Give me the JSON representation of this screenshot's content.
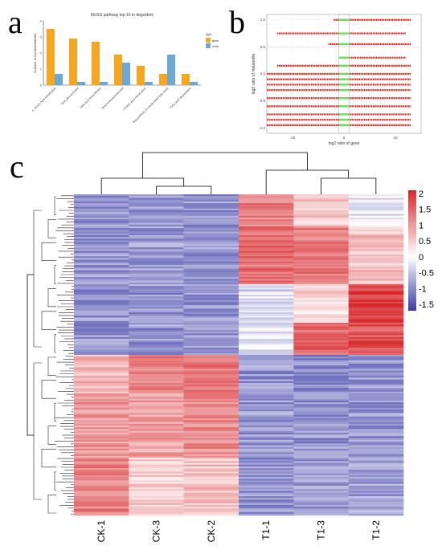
{
  "panel_labels": {
    "a": "a",
    "b": "b",
    "c": "c"
  },
  "colors": {
    "gene": "#f5a623",
    "meta": "#6ea7cf",
    "scatter": "#e8231c",
    "highlight": "#5be55b",
    "heat_low": "#3a3ba6",
    "heat_mid": "#ffffff",
    "heat_high": "#d7272b"
  },
  "chart_data": [
    {
      "type": "bar",
      "panel": "a",
      "title": "KEGG pathway top 10 in degs/dem",
      "ylabel": "Number of Gene/Metabolite",
      "xlabel": "",
      "categories": [
        "Cys, Sulphur, Amino Acid Metabolism",
        "beta glucosinolate",
        "beta acid biosynthesis",
        "Beta hydroxybutanoate",
        "Linoleic acid metabolism",
        "Biosynthesis of unsaturated fatty acids",
        "Fatty acid degradation"
      ],
      "series": [
        {
          "name": "gene",
          "values": [
            3.5,
            2.9,
            2.7,
            1.9,
            1.2,
            0.7,
            0.7
          ]
        },
        {
          "name": "meta",
          "values": [
            0.7,
            0.2,
            0.2,
            1.4,
            0.2,
            1.9,
            0.2
          ]
        }
      ],
      "ylim": [
        0,
        4
      ],
      "legend": {
        "title": "type",
        "position": "right"
      }
    },
    {
      "type": "scatter",
      "panel": "b",
      "title": "",
      "xlabel": "log2 ratio of gene",
      "ylabel": "log2 ratio of metabolite",
      "xlim": [
        -15,
        15
      ],
      "ylim": [
        -1.1,
        1.1
      ],
      "x_ticks": [
        "-10",
        "0",
        "10"
      ],
      "y_ticks": [
        "1.0",
        "0.5",
        "0.0",
        "-0.5",
        "-1.0"
      ],
      "rows": [
        {
          "y": 1.0,
          "x_from": -2,
          "x_to": 13
        },
        {
          "y": 0.75,
          "x_from": -13,
          "x_to": 12
        },
        {
          "y": 0.55,
          "x_from": -3,
          "x_to": 13
        },
        {
          "y": 0.3,
          "x_from": -1,
          "x_to": 12
        },
        {
          "y": 0.15,
          "x_from": -13,
          "x_to": 13
        },
        {
          "y": 0.0,
          "x_from": -15,
          "x_to": 13
        },
        {
          "y": -0.1,
          "x_from": -15,
          "x_to": 13
        },
        {
          "y": -0.2,
          "x_from": -15,
          "x_to": 13
        },
        {
          "y": -0.3,
          "x_from": -15,
          "x_to": 13
        },
        {
          "y": -0.45,
          "x_from": -15,
          "x_to": 13
        },
        {
          "y": -0.6,
          "x_from": -15,
          "x_to": 13
        },
        {
          "y": -0.75,
          "x_from": -15,
          "x_to": 13
        },
        {
          "y": -0.85,
          "x_from": -15,
          "x_to": 13
        },
        {
          "y": -0.95,
          "x_from": -15,
          "x_to": 13
        }
      ],
      "highlight_band": [
        -1,
        1
      ]
    },
    {
      "type": "heatmap",
      "panel": "c",
      "columns": [
        "CK-1",
        "CK-3",
        "CK-2",
        "T1-1",
        "T1-3",
        "T1-2"
      ],
      "colorbar": {
        "min": -1.7,
        "max": 2.1,
        "ticks": [
          "2",
          "1.5",
          "1",
          "0.5",
          "0",
          "-0.5",
          "-1",
          "-1.5"
        ]
      },
      "row_blocks": [
        {
          "fraction": 0.1,
          "values": [
            -0.9,
            -0.9,
            -0.9,
            1.2,
            0.5,
            -0.2
          ]
        },
        {
          "fraction": 0.18,
          "values": [
            -0.9,
            -0.85,
            -0.9,
            1.4,
            1.3,
            0.6
          ]
        },
        {
          "fraction": 0.12,
          "values": [
            -0.9,
            -0.9,
            -0.9,
            -0.3,
            0.4,
            1.9
          ]
        },
        {
          "fraction": 0.1,
          "values": [
            -0.9,
            -0.9,
            -0.85,
            -0.2,
            1.5,
            1.7
          ]
        },
        {
          "fraction": 0.12,
          "values": [
            0.7,
            1.2,
            1.3,
            -0.9,
            -1.0,
            -0.9
          ]
        },
        {
          "fraction": 0.2,
          "values": [
            1.0,
            0.9,
            1.1,
            -0.9,
            -0.9,
            -0.9
          ]
        },
        {
          "fraction": 0.18,
          "values": [
            1.2,
            0.5,
            0.6,
            -0.9,
            -0.9,
            -0.8
          ]
        }
      ]
    }
  ]
}
